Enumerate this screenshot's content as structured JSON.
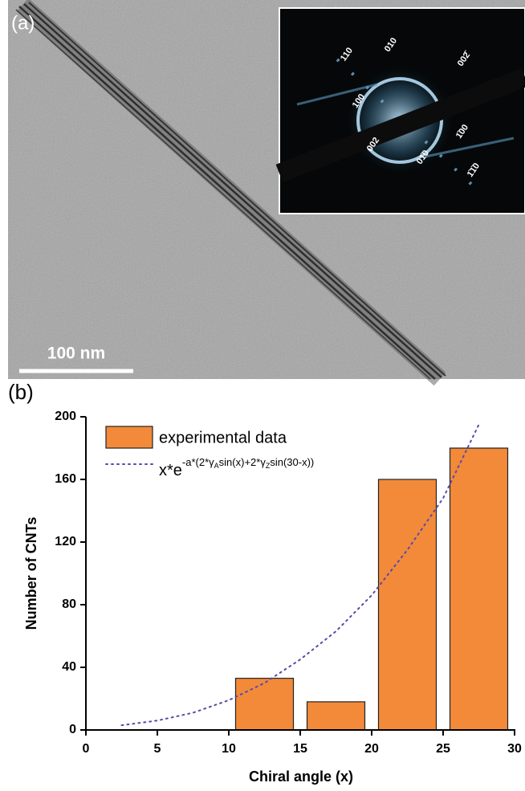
{
  "panel_a": {
    "label": "(a)",
    "scale_bar": "100 nm",
    "inset_labels": [
      "110",
      "010",
      "002̄",
      "100",
      "002",
      "1̄00",
      "01̄0",
      "1̄1̄0"
    ]
  },
  "chart_data": {
    "type": "bar",
    "panel_label": "(b)",
    "x_label": "Chiral angle (x)",
    "y_label": "Number of CNTs",
    "xlim": [
      0,
      30
    ],
    "xticks": [
      0,
      5,
      10,
      15,
      20,
      25,
      30
    ],
    "ylim": [
      0,
      200
    ],
    "yticks": [
      0,
      40,
      80,
      120,
      160,
      200
    ],
    "series": [
      {
        "name": "experimental data",
        "type": "bar",
        "color": "#f28a3a",
        "x": [
          12.5,
          17.5,
          22.5,
          27.5
        ],
        "values": [
          33,
          18,
          160,
          180
        ]
      },
      {
        "name": [
          "x*e",
          "-a*(2*γ",
          "A",
          "sin(x)+2*γ",
          "Z",
          "sin(30-x))"
        ],
        "type": "line",
        "color": "#5a4aa8",
        "dotted": true,
        "x": [
          2.5,
          5,
          7.5,
          10,
          12.5,
          15,
          17.5,
          20,
          22.5,
          25,
          27.5
        ],
        "values": [
          3,
          6,
          11,
          19,
          30,
          45,
          63,
          86,
          115,
          148,
          195
        ]
      }
    ]
  }
}
